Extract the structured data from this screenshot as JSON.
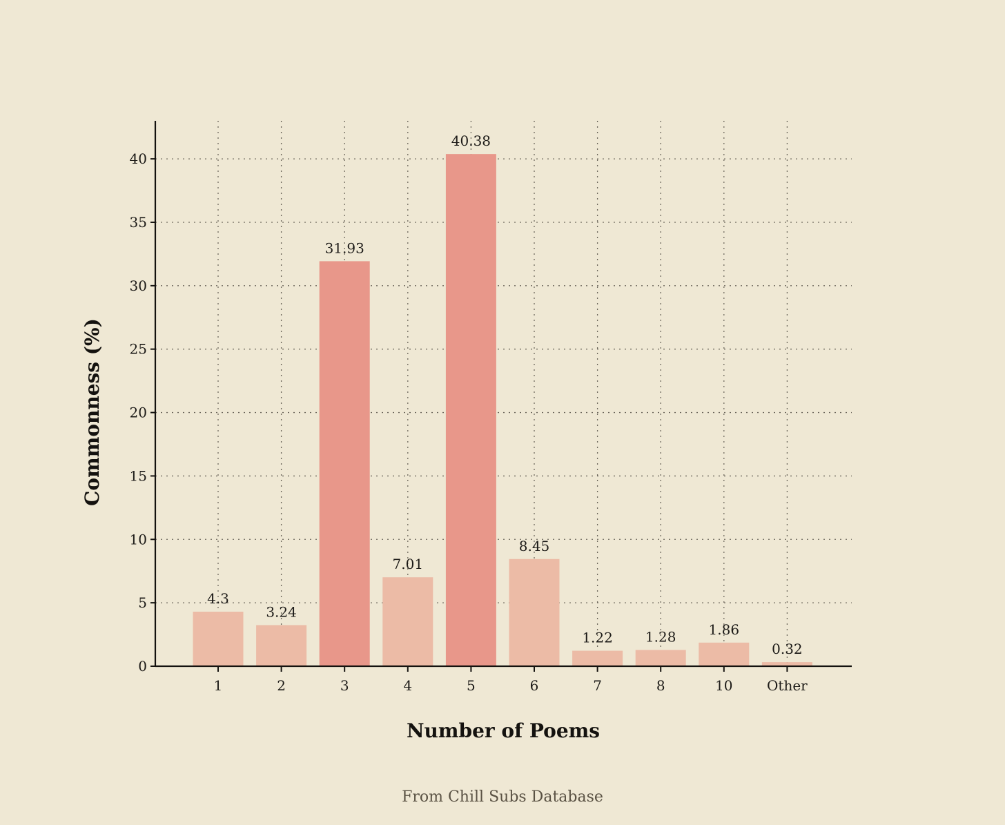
{
  "chart_data": {
    "type": "bar",
    "categories": [
      "1",
      "2",
      "3",
      "4",
      "5",
      "6",
      "7",
      "8",
      "10",
      "Other"
    ],
    "values": [
      4.3,
      3.24,
      31.93,
      7.01,
      40.38,
      8.45,
      1.22,
      1.28,
      1.86,
      0.32
    ],
    "value_labels": [
      "4.3",
      "3.24",
      "31.93",
      "7.01",
      "40.38",
      "8.45",
      "1.22",
      "1.28",
      "1.86",
      "0.32"
    ],
    "title": "",
    "xlabel": "Number of Poems",
    "ylabel": "Commonness (%)",
    "ylim": [
      0,
      43
    ],
    "yticks": [
      0,
      5,
      10,
      15,
      20,
      25,
      30,
      35,
      40
    ],
    "grid": true,
    "highlighted_categories": [
      "3",
      "5"
    ],
    "colors": {
      "background": "#efe8d4",
      "bar": "#ecbba6",
      "bar_highlight": "#e8978a"
    },
    "source_note": "From Chill Subs Database"
  }
}
